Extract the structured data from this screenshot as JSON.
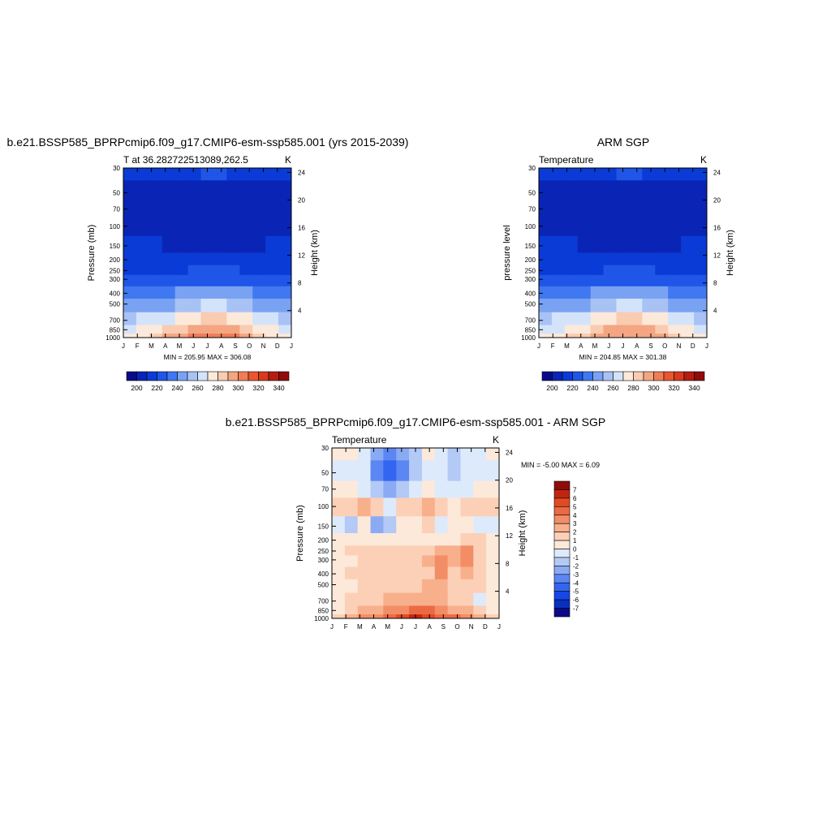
{
  "months": [
    "J",
    "F",
    "M",
    "A",
    "M",
    "J",
    "J",
    "A",
    "S",
    "O",
    "N",
    "D",
    "J"
  ],
  "pressure_ticks": [
    30,
    50,
    70,
    100,
    150,
    200,
    250,
    300,
    400,
    500,
    700,
    850,
    1000
  ],
  "height_ticks": [
    4,
    8,
    12,
    16,
    20,
    24
  ],
  "colorscale": [
    "#0b0b8a",
    "#0a25b5",
    "#0a3bd6",
    "#1f56e8",
    "#3f78f0",
    "#7aa2f3",
    "#a8c2f5",
    "#d3e3fa",
    "#fde9da",
    "#f9cbb0",
    "#f4a581",
    "#ef7d57",
    "#e95630",
    "#d73a1e",
    "#b51c12",
    "#8f0c0a"
  ],
  "panels": {
    "model": {
      "title": "b.e21.BSSP585_BPRPcmip6.f09_g17.CMIP6-esm-ssp585.001 (yrs 2015-2039)",
      "left_label": "T at 36.282722513089,262.5",
      "right_label": "K",
      "ylabel": "Pressure (mb)",
      "ylabel_right": "Height (km)",
      "stats": "MIN = 205.95 MAX = 306.08"
    },
    "obs": {
      "title": "ARM SGP",
      "left_label": "Temperature",
      "right_label": "K",
      "ylabel": "pressure level",
      "ylabel_right": "Height (km)",
      "stats": "MIN = 204.85 MAX = 301.38"
    },
    "diff": {
      "title": "b.e21.BSSP585_BPRPcmip6.f09_g17.CMIP6-esm-ssp585.001 - ARM SGP",
      "left_label": "Temperature",
      "right_label": "K",
      "ylabel": "Pressure (mb)",
      "ylabel_right": "Height (km)",
      "stats": "MIN =  -5.00 MAX =   6.09"
    }
  },
  "colorbar_abs": {
    "labels": [
      "200",
      "220",
      "240",
      "260",
      "280",
      "300",
      "320",
      "340"
    ]
  },
  "colorbar_diff": {
    "labels": [
      "7",
      "6",
      "5",
      "4",
      "3",
      "2",
      "1",
      "0",
      "-1",
      "-2",
      "-3",
      "-4",
      "-5",
      "-6",
      "-7"
    ]
  },
  "chart_data": [
    {
      "type": "heatmap",
      "title": "b.e21.BSSP585_BPRPcmip6.f09_g17.CMIP6-esm-ssp585.001 (yrs 2015-2039)",
      "xlabel": "",
      "ylabel": "Pressure (mb)",
      "y2label": "Height (km)",
      "x": [
        "J",
        "F",
        "M",
        "A",
        "M",
        "J",
        "J",
        "A",
        "S",
        "O",
        "N",
        "D",
        "J"
      ],
      "y": [
        30,
        50,
        70,
        100,
        150,
        200,
        250,
        300,
        400,
        500,
        700,
        850,
        1000
      ],
      "y_scale": "log",
      "units": "K",
      "min": 205.95,
      "max": 306.08,
      "values": [
        [
          221,
          221,
          221,
          221,
          222,
          224,
          226,
          226,
          224,
          222,
          221,
          221,
          221
        ],
        [
          214,
          214,
          213,
          213,
          212,
          212,
          212,
          212,
          213,
          213,
          214,
          214,
          214
        ],
        [
          211,
          212,
          210,
          209,
          208,
          207,
          206,
          207,
          208,
          209,
          210,
          211,
          211
        ],
        [
          213,
          213,
          212,
          209,
          207,
          206,
          206,
          206,
          207,
          208,
          210,
          212,
          213
        ],
        [
          217,
          217,
          216,
          212,
          210,
          209,
          208,
          208,
          209,
          210,
          213,
          216,
          217
        ],
        [
          220,
          220,
          220,
          220,
          219,
          218,
          218,
          218,
          219,
          219,
          220,
          220,
          220
        ],
        [
          222,
          222,
          223,
          223,
          224,
          225,
          226,
          226,
          225,
          224,
          223,
          222,
          222
        ],
        [
          226,
          226,
          227,
          228,
          230,
          232,
          233,
          233,
          232,
          230,
          228,
          227,
          226
        ],
        [
          238,
          238,
          239,
          241,
          244,
          247,
          249,
          249,
          247,
          244,
          241,
          239,
          238
        ],
        [
          248,
          248,
          250,
          253,
          257,
          261,
          263,
          263,
          261,
          257,
          253,
          250,
          248
        ],
        [
          262,
          263,
          266,
          270,
          275,
          281,
          284,
          284,
          281,
          276,
          270,
          265,
          262
        ],
        [
          272,
          273,
          277,
          283,
          289,
          295,
          298,
          298,
          295,
          288,
          281,
          275,
          272
        ],
        [
          279,
          280,
          285,
          292,
          298,
          304,
          306,
          305,
          302,
          295,
          288,
          282,
          279
        ]
      ]
    },
    {
      "type": "heatmap",
      "title": "ARM SGP",
      "xlabel": "",
      "ylabel": "pressure level",
      "y2label": "Height (km)",
      "x": [
        "J",
        "F",
        "M",
        "A",
        "M",
        "J",
        "J",
        "A",
        "S",
        "O",
        "N",
        "D",
        "J"
      ],
      "y": [
        30,
        50,
        70,
        100,
        150,
        200,
        250,
        300,
        400,
        500,
        700,
        850,
        1000
      ],
      "y_scale": "log",
      "units": "K",
      "min": 204.85,
      "max": 301.38,
      "values": [
        [
          220,
          220,
          220,
          221,
          222,
          224,
          226,
          226,
          224,
          222,
          221,
          220,
          220
        ],
        [
          213,
          213,
          212,
          212,
          211,
          211,
          211,
          211,
          212,
          212,
          213,
          213,
          213
        ],
        [
          210,
          211,
          209,
          208,
          207,
          206,
          205,
          206,
          207,
          208,
          209,
          210,
          210
        ],
        [
          212,
          212,
          211,
          209,
          207,
          206,
          206,
          206,
          207,
          208,
          209,
          211,
          212
        ],
        [
          216,
          216,
          215,
          212,
          210,
          209,
          208,
          208,
          209,
          210,
          212,
          215,
          216
        ],
        [
          219,
          219,
          219,
          219,
          218,
          218,
          218,
          218,
          218,
          219,
          219,
          219,
          219
        ],
        [
          222,
          222,
          223,
          223,
          224,
          225,
          226,
          226,
          225,
          224,
          223,
          222,
          222
        ],
        [
          226,
          226,
          227,
          228,
          230,
          232,
          233,
          233,
          232,
          230,
          228,
          227,
          226
        ],
        [
          238,
          238,
          239,
          241,
          244,
          247,
          249,
          249,
          247,
          244,
          241,
          239,
          238
        ],
        [
          248,
          248,
          250,
          253,
          257,
          261,
          263,
          263,
          261,
          257,
          253,
          250,
          248
        ],
        [
          262,
          263,
          266,
          270,
          275,
          281,
          284,
          284,
          281,
          276,
          270,
          265,
          262
        ],
        [
          271,
          272,
          276,
          282,
          288,
          294,
          297,
          297,
          294,
          287,
          280,
          274,
          271
        ],
        [
          278,
          279,
          284,
          290,
          296,
          300,
          301,
          300,
          298,
          292,
          286,
          281,
          278
        ]
      ]
    },
    {
      "type": "heatmap",
      "title": "b.e21.BSSP585_BPRPcmip6.f09_g17.CMIP6-esm-ssp585.001 - ARM SGP",
      "xlabel": "",
      "ylabel": "Pressure (mb)",
      "y2label": "Height (km)",
      "x": [
        "J",
        "F",
        "M",
        "A",
        "M",
        "J",
        "J",
        "A",
        "S",
        "O",
        "N",
        "D",
        "J"
      ],
      "y": [
        30,
        50,
        70,
        100,
        150,
        200,
        250,
        300,
        400,
        500,
        700,
        850,
        1000
      ],
      "y_scale": "log",
      "units": "K",
      "min": -5.0,
      "max": 6.09,
      "values": [
        [
          0.5,
          0.5,
          -0.5,
          -2.5,
          -3.5,
          -2.5,
          -1.5,
          0.5,
          -0.5,
          -1.5,
          -1.0,
          -0.5,
          0.5
        ],
        [
          -0.5,
          -0.5,
          -1.0,
          -3.5,
          -5.0,
          -3.5,
          -2.0,
          -0.5,
          -1.0,
          -1.5,
          -1.0,
          -0.5,
          -0.5
        ],
        [
          0.5,
          0.5,
          -0.5,
          -1.5,
          -2.5,
          -1.5,
          -0.5,
          0.5,
          -0.5,
          -1.0,
          -0.5,
          0.5,
          0.5
        ],
        [
          1.5,
          1.5,
          2.0,
          1.0,
          -0.5,
          1.5,
          1.5,
          2.5,
          1.5,
          0.5,
          1.0,
          1.5,
          1.5
        ],
        [
          -1.0,
          -1.5,
          0.5,
          -2.5,
          -1.5,
          0.5,
          0.5,
          1.5,
          -1.0,
          0.5,
          0.5,
          -0.5,
          -1.0
        ],
        [
          0.5,
          0.5,
          0.5,
          0.5,
          0.5,
          0.5,
          0.5,
          0.5,
          0.5,
          0.5,
          1.0,
          1.0,
          0.5
        ],
        [
          0.5,
          1.0,
          1.0,
          1.5,
          1.5,
          1.5,
          1.5,
          1.5,
          2.0,
          2.0,
          3.0,
          1.5,
          0.5
        ],
        [
          0.5,
          0.5,
          1.0,
          1.5,
          1.5,
          1.5,
          1.5,
          2.5,
          3.0,
          2.0,
          3.5,
          1.5,
          0.5
        ],
        [
          0.5,
          1.0,
          1.5,
          1.5,
          1.5,
          1.5,
          1.5,
          1.5,
          3.5,
          1.5,
          2.5,
          1.5,
          0.5
        ],
        [
          0.5,
          0.5,
          1.0,
          1.5,
          1.5,
          1.5,
          1.5,
          2.0,
          2.0,
          1.0,
          1.5,
          1.0,
          0.5
        ],
        [
          0.5,
          1.0,
          1.5,
          1.5,
          2.0,
          2.5,
          2.5,
          2.5,
          2.0,
          1.5,
          1.5,
          -0.5,
          0.5
        ],
        [
          0.5,
          1.5,
          2.0,
          2.5,
          3.0,
          3.5,
          4.5,
          4.5,
          3.0,
          2.5,
          2.0,
          1.5,
          0.5
        ],
        [
          1.0,
          2.0,
          3.0,
          3.5,
          4.5,
          5.5,
          6.0,
          5.5,
          4.5,
          4.0,
          3.0,
          2.0,
          1.0
        ]
      ]
    }
  ]
}
